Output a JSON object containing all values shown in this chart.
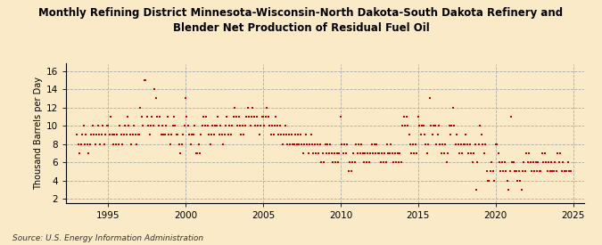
{
  "title": "Monthly Refining District Minnesota-Wisconsin-North Dakota-South Dakota Refinery and\nBlender Net Production of Residual Fuel Oil",
  "ylabel": "Thousand Barrels per Day",
  "source": "Source: U.S. Energy Information Administration",
  "background_color": "#faeac8",
  "plot_bg_color": "#faeac8",
  "dot_color": "#cc0000",
  "xlim": [
    1992.3,
    2025.7
  ],
  "ylim": [
    1.5,
    16.8
  ],
  "yticks": [
    2,
    4,
    6,
    8,
    10,
    12,
    14,
    16
  ],
  "xticks": [
    1995,
    2000,
    2005,
    2010,
    2015,
    2020,
    2025
  ],
  "data_points": [
    [
      1993.0,
      9
    ],
    [
      1993.08,
      8
    ],
    [
      1993.17,
      7
    ],
    [
      1993.25,
      8
    ],
    [
      1993.33,
      9
    ],
    [
      1993.42,
      10
    ],
    [
      1993.5,
      8
    ],
    [
      1993.58,
      9
    ],
    [
      1993.67,
      8
    ],
    [
      1993.75,
      7
    ],
    [
      1993.83,
      8
    ],
    [
      1993.92,
      9
    ],
    [
      1994.0,
      10
    ],
    [
      1994.08,
      9
    ],
    [
      1994.17,
      8
    ],
    [
      1994.25,
      9
    ],
    [
      1994.33,
      10
    ],
    [
      1994.42,
      9
    ],
    [
      1994.5,
      8
    ],
    [
      1994.58,
      9
    ],
    [
      1994.67,
      10
    ],
    [
      1994.75,
      8
    ],
    [
      1994.83,
      9
    ],
    [
      1994.92,
      10
    ],
    [
      1995.0,
      10
    ],
    [
      1995.08,
      9
    ],
    [
      1995.17,
      11
    ],
    [
      1995.25,
      9
    ],
    [
      1995.33,
      8
    ],
    [
      1995.42,
      9
    ],
    [
      1995.5,
      8
    ],
    [
      1995.58,
      9
    ],
    [
      1995.67,
      8
    ],
    [
      1995.75,
      10
    ],
    [
      1995.83,
      9
    ],
    [
      1995.92,
      8
    ],
    [
      1996.0,
      9
    ],
    [
      1996.08,
      10
    ],
    [
      1996.17,
      9
    ],
    [
      1996.25,
      11
    ],
    [
      1996.33,
      10
    ],
    [
      1996.42,
      9
    ],
    [
      1996.5,
      8
    ],
    [
      1996.58,
      9
    ],
    [
      1996.67,
      10
    ],
    [
      1996.75,
      9
    ],
    [
      1996.83,
      8
    ],
    [
      1996.92,
      9
    ],
    [
      1997.0,
      9
    ],
    [
      1997.08,
      12
    ],
    [
      1997.17,
      11
    ],
    [
      1997.25,
      10
    ],
    [
      1997.33,
      15
    ],
    [
      1997.42,
      15
    ],
    [
      1997.5,
      11
    ],
    [
      1997.58,
      10
    ],
    [
      1997.67,
      9
    ],
    [
      1997.75,
      10
    ],
    [
      1997.83,
      11
    ],
    [
      1997.92,
      10
    ],
    [
      1998.0,
      14
    ],
    [
      1998.08,
      13
    ],
    [
      1998.17,
      11
    ],
    [
      1998.25,
      10
    ],
    [
      1998.33,
      11
    ],
    [
      1998.42,
      9
    ],
    [
      1998.5,
      10
    ],
    [
      1998.58,
      9
    ],
    [
      1998.67,
      9
    ],
    [
      1998.75,
      10
    ],
    [
      1998.83,
      11
    ],
    [
      1998.92,
      9
    ],
    [
      1999.0,
      8
    ],
    [
      1999.08,
      9
    ],
    [
      1999.17,
      10
    ],
    [
      1999.25,
      11
    ],
    [
      1999.33,
      10
    ],
    [
      1999.42,
      9
    ],
    [
      1999.5,
      9
    ],
    [
      1999.58,
      8
    ],
    [
      1999.67,
      7
    ],
    [
      1999.75,
      8
    ],
    [
      1999.83,
      9
    ],
    [
      1999.92,
      10
    ],
    [
      2000.0,
      13
    ],
    [
      2000.08,
      11
    ],
    [
      2000.17,
      10
    ],
    [
      2000.25,
      9
    ],
    [
      2000.33,
      8
    ],
    [
      2000.42,
      9
    ],
    [
      2000.5,
      9
    ],
    [
      2000.58,
      10
    ],
    [
      2000.67,
      7
    ],
    [
      2000.75,
      7
    ],
    [
      2000.83,
      8
    ],
    [
      2000.92,
      7
    ],
    [
      2001.0,
      9
    ],
    [
      2001.08,
      10
    ],
    [
      2001.17,
      11
    ],
    [
      2001.25,
      10
    ],
    [
      2001.33,
      11
    ],
    [
      2001.42,
      10
    ],
    [
      2001.5,
      9
    ],
    [
      2001.58,
      8
    ],
    [
      2001.67,
      9
    ],
    [
      2001.75,
      10
    ],
    [
      2001.83,
      9
    ],
    [
      2001.92,
      10
    ],
    [
      2002.0,
      10
    ],
    [
      2002.08,
      11
    ],
    [
      2002.17,
      9
    ],
    [
      2002.25,
      10
    ],
    [
      2002.33,
      9
    ],
    [
      2002.42,
      8
    ],
    [
      2002.5,
      9
    ],
    [
      2002.58,
      10
    ],
    [
      2002.67,
      11
    ],
    [
      2002.75,
      9
    ],
    [
      2002.83,
      10
    ],
    [
      2002.92,
      9
    ],
    [
      2003.0,
      10
    ],
    [
      2003.08,
      11
    ],
    [
      2003.17,
      12
    ],
    [
      2003.25,
      11
    ],
    [
      2003.33,
      10
    ],
    [
      2003.42,
      11
    ],
    [
      2003.5,
      10
    ],
    [
      2003.58,
      9
    ],
    [
      2003.67,
      10
    ],
    [
      2003.75,
      9
    ],
    [
      2003.83,
      10
    ],
    [
      2003.92,
      11
    ],
    [
      2004.0,
      12
    ],
    [
      2004.08,
      11
    ],
    [
      2004.17,
      10
    ],
    [
      2004.25,
      11
    ],
    [
      2004.33,
      12
    ],
    [
      2004.42,
      11
    ],
    [
      2004.5,
      10
    ],
    [
      2004.58,
      11
    ],
    [
      2004.67,
      10
    ],
    [
      2004.75,
      9
    ],
    [
      2004.83,
      10
    ],
    [
      2004.92,
      11
    ],
    [
      2005.0,
      11
    ],
    [
      2005.08,
      10
    ],
    [
      2005.17,
      11
    ],
    [
      2005.25,
      12
    ],
    [
      2005.33,
      11
    ],
    [
      2005.42,
      10
    ],
    [
      2005.5,
      9
    ],
    [
      2005.58,
      10
    ],
    [
      2005.67,
      9
    ],
    [
      2005.75,
      10
    ],
    [
      2005.83,
      11
    ],
    [
      2005.92,
      10
    ],
    [
      2006.0,
      9
    ],
    [
      2006.08,
      10
    ],
    [
      2006.17,
      9
    ],
    [
      2006.25,
      8
    ],
    [
      2006.33,
      9
    ],
    [
      2006.42,
      10
    ],
    [
      2006.5,
      9
    ],
    [
      2006.58,
      8
    ],
    [
      2006.67,
      9
    ],
    [
      2006.75,
      8
    ],
    [
      2006.83,
      9
    ],
    [
      2006.92,
      8
    ],
    [
      2007.0,
      8
    ],
    [
      2007.08,
      9
    ],
    [
      2007.17,
      8
    ],
    [
      2007.25,
      9
    ],
    [
      2007.33,
      8
    ],
    [
      2007.42,
      9
    ],
    [
      2007.5,
      8
    ],
    [
      2007.58,
      7
    ],
    [
      2007.67,
      8
    ],
    [
      2007.75,
      9
    ],
    [
      2007.83,
      8
    ],
    [
      2007.92,
      7
    ],
    [
      2008.0,
      8
    ],
    [
      2008.08,
      9
    ],
    [
      2008.17,
      8
    ],
    [
      2008.25,
      7
    ],
    [
      2008.33,
      8
    ],
    [
      2008.42,
      7
    ],
    [
      2008.5,
      8
    ],
    [
      2008.58,
      7
    ],
    [
      2008.67,
      8
    ],
    [
      2008.75,
      6
    ],
    [
      2008.83,
      7
    ],
    [
      2008.92,
      6
    ],
    [
      2009.0,
      8
    ],
    [
      2009.08,
      7
    ],
    [
      2009.17,
      8
    ],
    [
      2009.25,
      7
    ],
    [
      2009.33,
      8
    ],
    [
      2009.42,
      7
    ],
    [
      2009.5,
      6
    ],
    [
      2009.58,
      7
    ],
    [
      2009.67,
      6
    ],
    [
      2009.75,
      7
    ],
    [
      2009.83,
      6
    ],
    [
      2009.92,
      7
    ],
    [
      2010.0,
      11
    ],
    [
      2010.08,
      8
    ],
    [
      2010.17,
      7
    ],
    [
      2010.25,
      8
    ],
    [
      2010.33,
      7
    ],
    [
      2010.42,
      8
    ],
    [
      2010.5,
      5
    ],
    [
      2010.58,
      6
    ],
    [
      2010.67,
      5
    ],
    [
      2010.75,
      6
    ],
    [
      2010.83,
      7
    ],
    [
      2010.92,
      6
    ],
    [
      2011.0,
      8
    ],
    [
      2011.08,
      7
    ],
    [
      2011.17,
      8
    ],
    [
      2011.25,
      7
    ],
    [
      2011.33,
      8
    ],
    [
      2011.42,
      7
    ],
    [
      2011.5,
      6
    ],
    [
      2011.58,
      7
    ],
    [
      2011.67,
      6
    ],
    [
      2011.75,
      7
    ],
    [
      2011.83,
      6
    ],
    [
      2011.92,
      7
    ],
    [
      2012.0,
      8
    ],
    [
      2012.08,
      7
    ],
    [
      2012.17,
      8
    ],
    [
      2012.25,
      7
    ],
    [
      2012.33,
      8
    ],
    [
      2012.42,
      7
    ],
    [
      2012.5,
      7
    ],
    [
      2012.58,
      6
    ],
    [
      2012.67,
      7
    ],
    [
      2012.75,
      6
    ],
    [
      2012.83,
      7
    ],
    [
      2012.92,
      6
    ],
    [
      2013.0,
      8
    ],
    [
      2013.08,
      7
    ],
    [
      2013.17,
      7
    ],
    [
      2013.25,
      8
    ],
    [
      2013.33,
      7
    ],
    [
      2013.42,
      6
    ],
    [
      2013.5,
      7
    ],
    [
      2013.58,
      6
    ],
    [
      2013.67,
      7
    ],
    [
      2013.75,
      6
    ],
    [
      2013.83,
      7
    ],
    [
      2013.92,
      6
    ],
    [
      2014.0,
      10
    ],
    [
      2014.08,
      11
    ],
    [
      2014.17,
      10
    ],
    [
      2014.25,
      11
    ],
    [
      2014.33,
      10
    ],
    [
      2014.42,
      9
    ],
    [
      2014.5,
      8
    ],
    [
      2014.58,
      7
    ],
    [
      2014.67,
      8
    ],
    [
      2014.75,
      7
    ],
    [
      2014.83,
      8
    ],
    [
      2014.92,
      7
    ],
    [
      2015.0,
      11
    ],
    [
      2015.08,
      10
    ],
    [
      2015.17,
      9
    ],
    [
      2015.25,
      10
    ],
    [
      2015.33,
      10
    ],
    [
      2015.42,
      9
    ],
    [
      2015.5,
      8
    ],
    [
      2015.58,
      7
    ],
    [
      2015.67,
      8
    ],
    [
      2015.75,
      13
    ],
    [
      2015.83,
      10
    ],
    [
      2015.92,
      9
    ],
    [
      2016.0,
      10
    ],
    [
      2016.08,
      10
    ],
    [
      2016.17,
      8
    ],
    [
      2016.25,
      9
    ],
    [
      2016.33,
      10
    ],
    [
      2016.42,
      8
    ],
    [
      2016.5,
      7
    ],
    [
      2016.58,
      8
    ],
    [
      2016.67,
      7
    ],
    [
      2016.75,
      8
    ],
    [
      2016.83,
      6
    ],
    [
      2016.92,
      7
    ],
    [
      2017.0,
      10
    ],
    [
      2017.08,
      9
    ],
    [
      2017.17,
      10
    ],
    [
      2017.25,
      12
    ],
    [
      2017.33,
      10
    ],
    [
      2017.42,
      8
    ],
    [
      2017.5,
      9
    ],
    [
      2017.58,
      8
    ],
    [
      2017.67,
      7
    ],
    [
      2017.75,
      8
    ],
    [
      2017.83,
      7
    ],
    [
      2017.92,
      8
    ],
    [
      2018.0,
      8
    ],
    [
      2018.08,
      9
    ],
    [
      2018.17,
      8
    ],
    [
      2018.25,
      7
    ],
    [
      2018.33,
      8
    ],
    [
      2018.42,
      7
    ],
    [
      2018.5,
      6
    ],
    [
      2018.58,
      7
    ],
    [
      2018.67,
      8
    ],
    [
      2018.75,
      3
    ],
    [
      2018.83,
      6
    ],
    [
      2018.92,
      8
    ],
    [
      2019.0,
      10
    ],
    [
      2019.08,
      9
    ],
    [
      2019.17,
      8
    ],
    [
      2019.25,
      7
    ],
    [
      2019.33,
      8
    ],
    [
      2019.42,
      5
    ],
    [
      2019.5,
      4
    ],
    [
      2019.58,
      4
    ],
    [
      2019.67,
      5
    ],
    [
      2019.75,
      6
    ],
    [
      2019.83,
      5
    ],
    [
      2019.92,
      4
    ],
    [
      2020.0,
      8
    ],
    [
      2020.08,
      8
    ],
    [
      2020.17,
      7
    ],
    [
      2020.25,
      6
    ],
    [
      2020.33,
      5
    ],
    [
      2020.42,
      6
    ],
    [
      2020.5,
      5
    ],
    [
      2020.58,
      6
    ],
    [
      2020.67,
      5
    ],
    [
      2020.75,
      4
    ],
    [
      2020.83,
      3
    ],
    [
      2020.92,
      5
    ],
    [
      2021.0,
      11
    ],
    [
      2021.08,
      6
    ],
    [
      2021.17,
      6
    ],
    [
      2021.25,
      5
    ],
    [
      2021.33,
      5
    ],
    [
      2021.42,
      4
    ],
    [
      2021.5,
      5
    ],
    [
      2021.58,
      4
    ],
    [
      2021.67,
      3
    ],
    [
      2021.75,
      5
    ],
    [
      2021.83,
      6
    ],
    [
      2021.92,
      5
    ],
    [
      2022.0,
      7
    ],
    [
      2022.08,
      6
    ],
    [
      2022.17,
      7
    ],
    [
      2022.25,
      6
    ],
    [
      2022.33,
      5
    ],
    [
      2022.42,
      6
    ],
    [
      2022.5,
      5
    ],
    [
      2022.58,
      6
    ],
    [
      2022.67,
      5
    ],
    [
      2022.75,
      6
    ],
    [
      2022.83,
      5
    ],
    [
      2022.92,
      5
    ],
    [
      2023.0,
      7
    ],
    [
      2023.08,
      6
    ],
    [
      2023.17,
      7
    ],
    [
      2023.25,
      6
    ],
    [
      2023.33,
      5
    ],
    [
      2023.42,
      6
    ],
    [
      2023.5,
      5
    ],
    [
      2023.58,
      6
    ],
    [
      2023.67,
      5
    ],
    [
      2023.75,
      5
    ],
    [
      2023.83,
      6
    ],
    [
      2023.92,
      5
    ],
    [
      2024.0,
      7
    ],
    [
      2024.08,
      6
    ],
    [
      2024.17,
      7
    ],
    [
      2024.25,
      5
    ],
    [
      2024.33,
      6
    ],
    [
      2024.42,
      5
    ],
    [
      2024.5,
      5
    ],
    [
      2024.58,
      5
    ],
    [
      2024.67,
      6
    ],
    [
      2024.75,
      5
    ],
    [
      2024.83,
      5
    ]
  ]
}
